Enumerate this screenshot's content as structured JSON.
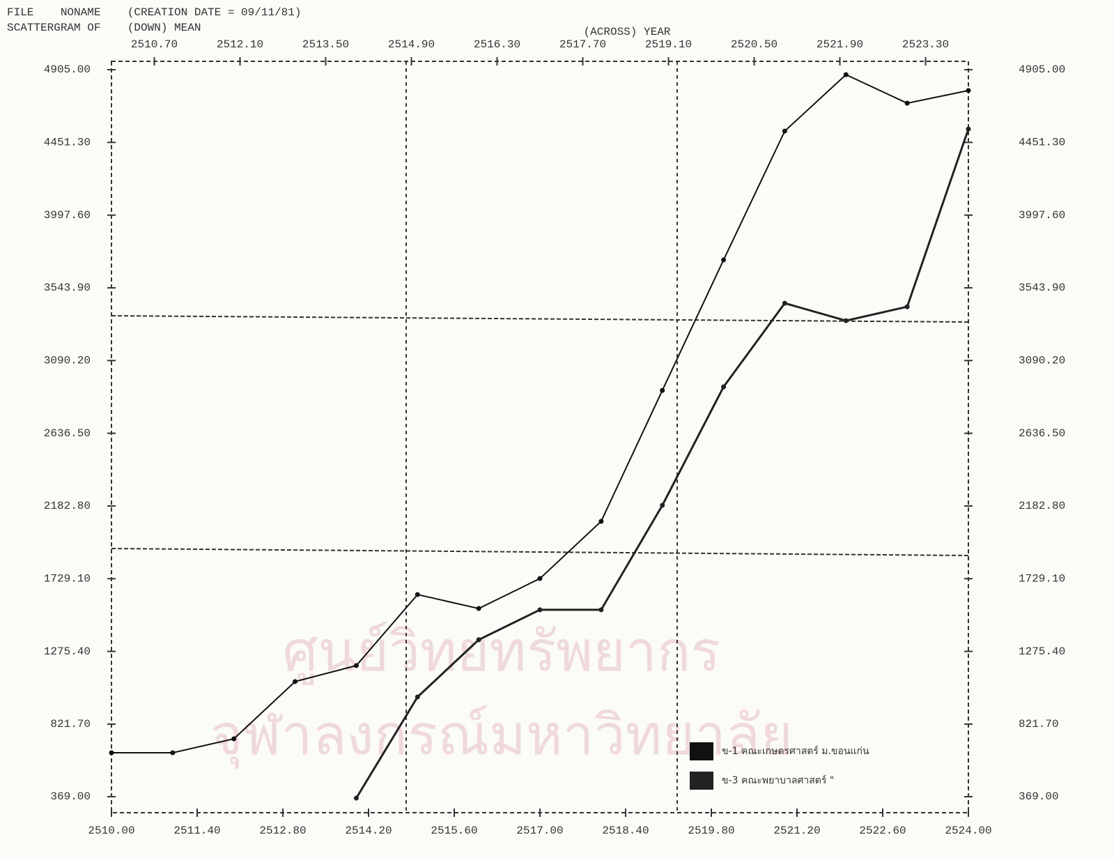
{
  "header": {
    "file": "FILE    NONAME    (CREATION DATE = 09/11/81)",
    "scattergram": "SCATTERGRAM OF    (DOWN) MEAN"
  },
  "chart_data": {
    "type": "line",
    "x_label": "(ACROSS) YEAR",
    "x": [
      2510,
      2511,
      2512,
      2513,
      2514,
      2515,
      2516,
      2517,
      2518,
      2519,
      2520,
      2521,
      2522,
      2523,
      2524
    ],
    "series": [
      {
        "name": "ข-1  คณะเกษตรศาสตร์  ม.ขอนแก่น",
        "color": "#111111",
        "values": [
          643,
          643,
          730,
          1087,
          1187,
          1630,
          1543,
          1730,
          2087,
          2904,
          3718,
          4522,
          4874,
          4696,
          4775
        ]
      },
      {
        "name": "ข-3  คณะพยาบาลศาสตร์  \"",
        "color": "#222222",
        "values": [
          null,
          null,
          null,
          null,
          360,
          991,
          1348,
          1535,
          1535,
          2187,
          2926,
          3448,
          3339,
          3426,
          4535
        ]
      }
    ],
    "xlim": [
      2510,
      2524
    ],
    "xticks": [
      {
        "value": 2510,
        "label": "2510.00"
      },
      {
        "value": 2511.4,
        "label": "2511.40"
      },
      {
        "value": 2512.8,
        "label": "2512.80"
      },
      {
        "value": 2514.2,
        "label": "2514.20"
      },
      {
        "value": 2515.6,
        "label": "2515.60"
      },
      {
        "value": 2517,
        "label": "2517.00"
      },
      {
        "value": 2518.4,
        "label": "2518.40"
      },
      {
        "value": 2519.8,
        "label": "2519.80"
      },
      {
        "value": 2521.2,
        "label": "2521.20"
      },
      {
        "value": 2522.6,
        "label": "2522.60"
      },
      {
        "value": 2524,
        "label": "2524.00"
      }
    ],
    "x2ticks": [
      {
        "value": 2510.7,
        "label": "2510.70"
      },
      {
        "value": 2512.1,
        "label": "2512.10"
      },
      {
        "value": 2513.5,
        "label": "2513.50"
      },
      {
        "value": 2514.9,
        "label": "2514.90"
      },
      {
        "value": 2516.3,
        "label": "2516.30"
      },
      {
        "value": 2517.7,
        "label": "2517.70"
      },
      {
        "value": 2519.1,
        "label": "2519.10"
      },
      {
        "value": 2520.5,
        "label": "2520.50"
      },
      {
        "value": 2521.9,
        "label": "2521.90"
      },
      {
        "value": 2523.3,
        "label": "2523.30"
      }
    ],
    "ylim": [
      369,
      4905
    ],
    "yticks": [
      {
        "value": 369,
        "label": "369.00"
      },
      {
        "value": 821.7,
        "label": "821.70"
      },
      {
        "value": 1275.4,
        "label": "1275.40"
      },
      {
        "value": 1729.1,
        "label": "1729.10"
      },
      {
        "value": 2182.8,
        "label": "2182.80"
      },
      {
        "value": 2636.5,
        "label": "2636.50"
      },
      {
        "value": 3090.2,
        "label": "3090.20"
      },
      {
        "value": 3543.9,
        "label": "3543.90"
      },
      {
        "value": 3997.6,
        "label": "3997.60"
      },
      {
        "value": 4451.3,
        "label": "4451.30"
      },
      {
        "value": 4905,
        "label": "4905.00"
      }
    ],
    "y2lim": [
      369,
      4905
    ],
    "y2ticks": [
      {
        "value": 369,
        "label": "369.00"
      },
      {
        "value": 821.7,
        "label": "821.70"
      },
      {
        "value": 1275.4,
        "label": "1275.40"
      },
      {
        "value": 1729.1,
        "label": "1729.10"
      },
      {
        "value": 2182.8,
        "label": "2182.80"
      },
      {
        "value": 2636.5,
        "label": "2636.50"
      },
      {
        "value": 3090.2,
        "label": "3090.20"
      },
      {
        "value": 3543.9,
        "label": "3543.90"
      },
      {
        "value": 3997.6,
        "label": "3997.60"
      },
      {
        "value": 4451.3,
        "label": "4451.30"
      },
      {
        "value": 4905,
        "label": "4905.00"
      }
    ],
    "legend": "lower right"
  },
  "watermark": [
    "ศูนย์วิทยทรัพยากร",
    "จุฬาลงกรณ์มหาวิทยาลัย"
  ]
}
